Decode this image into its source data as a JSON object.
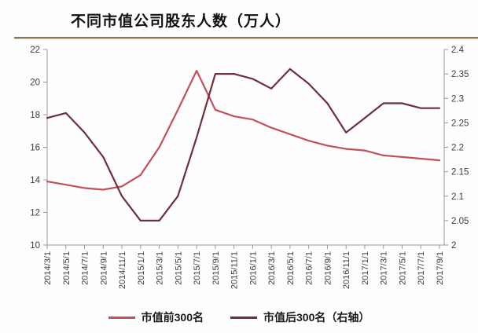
{
  "header": {
    "title": "不同市值公司股东人数（万人）"
  },
  "chart_data": {
    "type": "line",
    "title": "不同市值公司股东人数（万人）",
    "categories": [
      "2014/3/1",
      "2014/5/1",
      "2014/7/1",
      "2014/9/1",
      "2014/11/1",
      "2015/1/1",
      "2015/3/1",
      "2015/5/1",
      "2015/7/1",
      "2015/9/1",
      "2015/11/1",
      "2016/1/1",
      "2016/3/1",
      "2016/5/1",
      "2016/7/1",
      "2016/9/1",
      "2016/11/1",
      "2017/1/1",
      "2017/3/1",
      "2017/5/1",
      "2017/7/1",
      "2017/9/1"
    ],
    "series": [
      {
        "name": "市值前300名",
        "axis": "left",
        "color": "#c24f5c",
        "values": [
          13.9,
          13.7,
          13.5,
          13.4,
          13.6,
          14.3,
          16.0,
          18.3,
          20.7,
          18.3,
          17.9,
          17.7,
          17.2,
          16.8,
          16.4,
          16.1,
          15.9,
          15.8,
          15.5,
          15.4,
          15.3,
          15.2
        ]
      },
      {
        "name": "市值后300名（右轴）",
        "axis": "right",
        "color": "#6e2f38",
        "values": [
          2.26,
          2.27,
          2.23,
          2.18,
          2.1,
          2.05,
          2.05,
          2.1,
          2.22,
          2.35,
          2.35,
          2.34,
          2.32,
          2.36,
          2.33,
          2.29,
          2.23,
          2.26,
          2.29,
          2.29,
          2.28,
          2.28
        ]
      }
    ],
    "left_axis": {
      "min": 10,
      "max": 22,
      "step": 2,
      "tick_labels": [
        "22",
        "20",
        "18",
        "16",
        "14",
        "12",
        "10"
      ]
    },
    "right_axis": {
      "min": 2.0,
      "max": 2.4,
      "step": 0.05,
      "tick_labels": [
        "2.4",
        "2.35",
        "2.3",
        "2.25",
        "2.2",
        "2.15",
        "2.1",
        "2.05",
        "2"
      ]
    },
    "grid": false,
    "legend_position": "bottom",
    "axis_color": "#9a9a9a",
    "label_color": "#3d3d3d"
  },
  "legend": {
    "items": [
      {
        "label": "市值前300名",
        "color": "#c24f5c"
      },
      {
        "label": "市值后300名（右轴）",
        "color": "#6e2f38"
      }
    ]
  }
}
